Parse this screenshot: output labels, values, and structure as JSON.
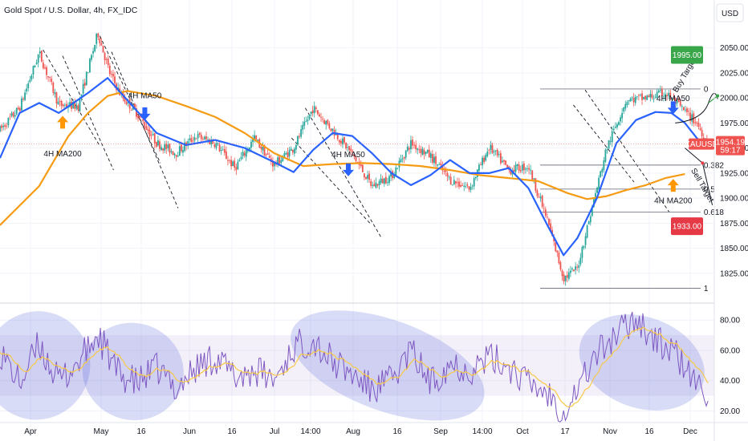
{
  "header": {
    "title": "Gold Spot / U.S. Dollar, 4h, FX_IDC",
    "currency": "USD"
  },
  "colors": {
    "bull": "#26a69a",
    "bear": "#ef5350",
    "ma50": "#2962ff",
    "ma200": "#f59b14",
    "rsi": "#7e57c2",
    "rsi_ma": "#f7c948",
    "ellipse": "#3f51d8",
    "buy": "#3aa64a",
    "sell": "#e53946",
    "arrow_up": "#ff9800",
    "arrow_down": "#2962ff"
  },
  "chart_data": [
    {
      "type": "candlestick",
      "title": "Gold Spot / U.S. Dollar, 4h, FX_IDC",
      "x_ticks": [
        "Apr",
        "May",
        "16",
        "Jun",
        "16",
        "Jul",
        "14:00",
        "Aug",
        "16",
        "Sep",
        "14:00",
        "Oct",
        "17",
        "Nov",
        "16",
        "Dec"
      ],
      "y_ticks": [
        "2050.00",
        "2025.00",
        "2000.00",
        "1975.00",
        "1950.00",
        "1925.00",
        "1900.00",
        "1875.00",
        "1850.00",
        "1825.00"
      ],
      "ylim": [
        1800,
        2077
      ],
      "grid": true,
      "price_path": [
        [
          0,
          1968
        ],
        [
          1.0,
          1990
        ],
        [
          2.0,
          2045
        ],
        [
          3.0,
          1993
        ],
        [
          4.0,
          1992
        ],
        [
          5.0,
          2065
        ],
        [
          5.6,
          2025
        ],
        [
          6.2,
          2002
        ],
        [
          7.0,
          1985
        ],
        [
          8.0,
          1955
        ],
        [
          9.0,
          1945
        ],
        [
          10.0,
          1962
        ],
        [
          11.0,
          1955
        ],
        [
          12.0,
          1930
        ],
        [
          13.0,
          1960
        ],
        [
          14.0,
          1933
        ],
        [
          15.0,
          1950
        ],
        [
          16.0,
          1990
        ],
        [
          17.0,
          1968
        ],
        [
          18.0,
          1944
        ],
        [
          19.0,
          1912
        ],
        [
          20.0,
          1922
        ],
        [
          21.0,
          1955
        ],
        [
          22.0,
          1942
        ],
        [
          23.0,
          1918
        ],
        [
          24.0,
          1910
        ],
        [
          25.0,
          1951
        ],
        [
          26.0,
          1928
        ],
        [
          27.0,
          1932
        ],
        [
          28.0,
          1876
        ],
        [
          28.8,
          1820
        ],
        [
          29.5,
          1830
        ],
        [
          30.0,
          1870
        ],
        [
          31.0,
          1950
        ],
        [
          32.0,
          1998
        ],
        [
          33.0,
          2000
        ],
        [
          34.0,
          2005
        ],
        [
          34.8,
          1990
        ],
        [
          35.6,
          1975
        ],
        [
          36.2,
          1954
        ]
      ],
      "ma50": [
        [
          0,
          1940
        ],
        [
          1.0,
          1985
        ],
        [
          2.0,
          1995
        ],
        [
          3.0,
          1985
        ],
        [
          4.5,
          2005
        ],
        [
          5.5,
          2020
        ],
        [
          6.5,
          1998
        ],
        [
          8.0,
          1965
        ],
        [
          9.5,
          1953
        ],
        [
          11.0,
          1958
        ],
        [
          12.5,
          1950
        ],
        [
          14.0,
          1936
        ],
        [
          15.0,
          1926
        ],
        [
          16.0,
          1948
        ],
        [
          17.0,
          1965
        ],
        [
          18.0,
          1962
        ],
        [
          19.0,
          1945
        ],
        [
          20.0,
          1925
        ],
        [
          21.0,
          1913
        ],
        [
          22.0,
          1923
        ],
        [
          23.0,
          1938
        ],
        [
          24.0,
          1925
        ],
        [
          25.0,
          1925
        ],
        [
          26.0,
          1930
        ],
        [
          27.0,
          1910
        ],
        [
          28.0,
          1872
        ],
        [
          28.8,
          1843
        ],
        [
          29.5,
          1860
        ],
        [
          30.5,
          1900
        ],
        [
          31.5,
          1955
        ],
        [
          32.5,
          1978
        ],
        [
          33.5,
          1986
        ],
        [
          34.3,
          1985
        ],
        [
          35.0,
          1975
        ],
        [
          35.6,
          1960
        ],
        [
          36.2,
          1950
        ]
      ],
      "ma200": [
        [
          0,
          1873
        ],
        [
          2.0,
          1912
        ],
        [
          3.5,
          1962
        ],
        [
          4.5,
          1985
        ],
        [
          5.5,
          2002
        ],
        [
          6.5,
          2007
        ],
        [
          8.0,
          2002
        ],
        [
          9.5,
          1992
        ],
        [
          11.0,
          1981
        ],
        [
          12.5,
          1965
        ],
        [
          14.0,
          1945
        ],
        [
          15.5,
          1932
        ],
        [
          17.0,
          1934
        ],
        [
          18.5,
          1935
        ],
        [
          20.0,
          1934
        ],
        [
          21.5,
          1932
        ],
        [
          23.0,
          1928
        ],
        [
          24.5,
          1923
        ],
        [
          26.0,
          1920
        ],
        [
          27.5,
          1917
        ],
        [
          29.0,
          1905
        ],
        [
          30.0,
          1899
        ],
        [
          31.0,
          1902
        ],
        [
          32.0,
          1908
        ],
        [
          33.0,
          1913
        ],
        [
          34.0,
          1920
        ],
        [
          35.0,
          1924
        ]
      ],
      "fibonacci": [
        {
          "label": "0",
          "value": 2009
        },
        {
          "label": "0.382",
          "value": 1933
        },
        {
          "label": "0.5",
          "value": 1909
        },
        {
          "label": "0.618",
          "value": 1886
        },
        {
          "label": "1",
          "value": 1810
        }
      ],
      "price_tags": [
        {
          "label": "1995.00",
          "value": 2043,
          "kind": "buy"
        },
        {
          "label": "1933.00",
          "value": 1872,
          "kind": "sell"
        }
      ],
      "current": {
        "symbol": "XAUUSD",
        "price": "1954.19",
        "countdown": "59:17",
        "value": 1954
      },
      "annotations": [
        {
          "text": "4H MA200",
          "x": 3.2,
          "y": 1945,
          "arrow": "up",
          "arrow_y": 1975
        },
        {
          "text": "4H MA50",
          "x": 7.4,
          "y": 2003,
          "arrow": "down",
          "arrow_y": 1985
        },
        {
          "text": "4H MA50",
          "x": 17.8,
          "y": 1944,
          "arrow": "down",
          "arrow_y": 1929
        },
        {
          "text": "4H MA50",
          "x": 34.4,
          "y": 2000,
          "arrow": "down",
          "arrow_y": 1991
        },
        {
          "text": "4H MA200",
          "x": 34.4,
          "y": 1898,
          "arrow": "up",
          "arrow_y": 1912
        }
      ],
      "target_labels": {
        "buy": "Buy Target",
        "sell": "Sell Target"
      },
      "channels": [
        {
          "x1": 2.2,
          "y1": 2048,
          "x2": 5.1,
          "y2": 1952
        },
        {
          "x1": 3.2,
          "y1": 2042,
          "x2": 5.8,
          "y2": 1928
        },
        {
          "x1": 5.1,
          "y1": 2062,
          "x2": 8.2,
          "y2": 1935
        },
        {
          "x1": 5.7,
          "y1": 2046,
          "x2": 9.1,
          "y2": 1890
        },
        {
          "x1": 15.6,
          "y1": 1990,
          "x2": 19.5,
          "y2": 1860
        },
        {
          "x1": 14.9,
          "y1": 1960,
          "x2": 18.9,
          "y2": 1875
        },
        {
          "x1": 29.3,
          "y1": 1993,
          "x2": 32.4,
          "y2": 1916
        },
        {
          "x1": 29.9,
          "y1": 2008,
          "x2": 34.2,
          "y2": 1886
        }
      ]
    },
    {
      "type": "line",
      "title": "RSI",
      "y_ticks": [
        "80.00",
        "60.00",
        "40.00",
        "20.00"
      ],
      "ylim": [
        16,
        87
      ],
      "band": [
        30,
        70
      ],
      "rsi_path": [
        [
          0,
          60
        ],
        [
          1.0,
          38
        ],
        [
          2.0,
          64
        ],
        [
          3.0,
          39
        ],
        [
          4.0,
          52
        ],
        [
          5.0,
          70
        ],
        [
          6.0,
          45
        ],
        [
          7.0,
          38
        ],
        [
          8.0,
          48
        ],
        [
          9.0,
          35
        ],
        [
          10.0,
          48
        ],
        [
          11.0,
          56
        ],
        [
          12.0,
          42
        ],
        [
          13.0,
          47
        ],
        [
          14.0,
          40
        ],
        [
          15.0,
          62
        ],
        [
          16.0,
          67
        ],
        [
          17.0,
          52
        ],
        [
          18.0,
          44
        ],
        [
          19.0,
          34
        ],
        [
          20.0,
          40
        ],
        [
          21.0,
          60
        ],
        [
          22.0,
          38
        ],
        [
          23.0,
          52
        ],
        [
          24.0,
          47
        ],
        [
          25.0,
          55
        ],
        [
          26.0,
          50
        ],
        [
          27.0,
          38
        ],
        [
          28.0,
          32
        ],
        [
          28.8,
          20
        ],
        [
          29.6,
          37
        ],
        [
          30.5,
          58
        ],
        [
          31.5,
          70
        ],
        [
          32.5,
          82
        ],
        [
          33.5,
          66
        ],
        [
          34.5,
          58
        ],
        [
          35.5,
          38
        ],
        [
          36.2,
          32
        ]
      ],
      "ellipses": [
        {
          "cx": 1.9,
          "cy": 50,
          "rx": 2.7,
          "ry": 36
        },
        {
          "cx": 6.8,
          "cy": 46,
          "rx": 2.6,
          "ry": 32
        },
        {
          "cx": 19.8,
          "cy": 50,
          "rx": 5.2,
          "ry": 30
        },
        {
          "cx": 32.8,
          "cy": 52,
          "rx": 3.3,
          "ry": 30
        }
      ]
    }
  ]
}
